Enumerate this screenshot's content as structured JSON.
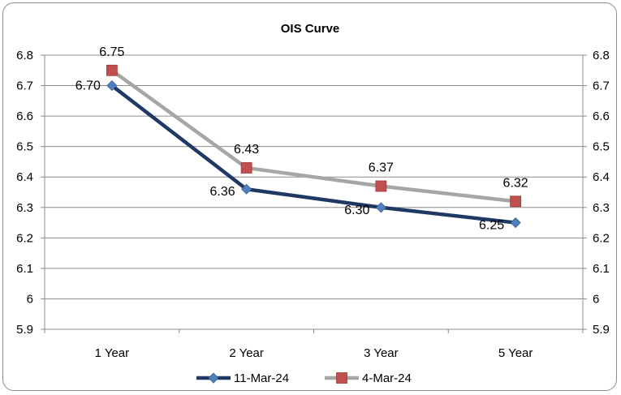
{
  "chart_data": {
    "type": "line",
    "title": "OIS Curve",
    "categories": [
      "1 Year",
      "2 Year",
      "3 Year",
      "5 Year"
    ],
    "series": [
      {
        "name": "11-Mar-24",
        "values": [
          6.7,
          6.36,
          6.3,
          6.25
        ],
        "labels": [
          "6.70",
          "6.36",
          "6.30",
          "6.25"
        ],
        "color": "#1f3864",
        "marker": "diamond",
        "marker_color": "#4f81bd"
      },
      {
        "name": "4-Mar-24",
        "values": [
          6.75,
          6.43,
          6.37,
          6.32
        ],
        "labels": [
          "6.75",
          "6.43",
          "6.37",
          "6.32"
        ],
        "color": "#a6a6a6",
        "marker": "square",
        "marker_color": "#c0504d"
      }
    ],
    "ylim": [
      5.9,
      6.8
    ],
    "yticks": [
      "5.9",
      "6",
      "6.1",
      "6.2",
      "6.3",
      "6.4",
      "6.5",
      "6.6",
      "6.7",
      "6.8"
    ],
    "secondary_yticks": [
      "5.9",
      "6",
      "6.1",
      "6.2",
      "6.3",
      "6.4",
      "6.5",
      "6.6",
      "6.7",
      "6.8"
    ],
    "grid": true,
    "legend": "bottom"
  }
}
